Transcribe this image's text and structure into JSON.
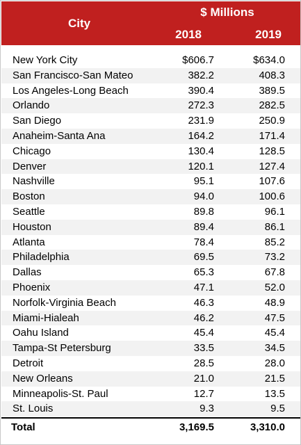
{
  "header": {
    "city_label": "City",
    "unit_label": "$ Millions",
    "year1": "2018",
    "year2": "2019"
  },
  "rows": [
    {
      "city": "New York City",
      "v2018": "$606.7",
      "v2019": "$634.0"
    },
    {
      "city": "San Francisco-San Mateo",
      "v2018": "382.2",
      "v2019": "408.3"
    },
    {
      "city": "Los Angeles-Long Beach",
      "v2018": "390.4",
      "v2019": "389.5"
    },
    {
      "city": "Orlando",
      "v2018": "272.3",
      "v2019": "282.5"
    },
    {
      "city": "San Diego",
      "v2018": "231.9",
      "v2019": "250.9"
    },
    {
      "city": "Anaheim-Santa Ana",
      "v2018": "164.2",
      "v2019": "171.4"
    },
    {
      "city": "Chicago",
      "v2018": "130.4",
      "v2019": "128.5"
    },
    {
      "city": "Denver",
      "v2018": "120.1",
      "v2019": "127.4"
    },
    {
      "city": "Nashville",
      "v2018": "95.1",
      "v2019": "107.6"
    },
    {
      "city": "Boston",
      "v2018": "94.0",
      "v2019": "100.6"
    },
    {
      "city": "Seattle",
      "v2018": "89.8",
      "v2019": "96.1"
    },
    {
      "city": "Houston",
      "v2018": "89.4",
      "v2019": "86.1"
    },
    {
      "city": "Atlanta",
      "v2018": "78.4",
      "v2019": "85.2"
    },
    {
      "city": "Philadelphia",
      "v2018": "69.5",
      "v2019": "73.2"
    },
    {
      "city": "Dallas",
      "v2018": "65.3",
      "v2019": "67.8"
    },
    {
      "city": "Phoenix",
      "v2018": "47.1",
      "v2019": "52.0"
    },
    {
      "city": "Norfolk-Virginia Beach",
      "v2018": "46.3",
      "v2019": "48.9"
    },
    {
      "city": "Miami-Hialeah",
      "v2018": "46.2",
      "v2019": "47.5"
    },
    {
      "city": "Oahu Island",
      "v2018": "45.4",
      "v2019": "45.4"
    },
    {
      "city": "Tampa-St Petersburg",
      "v2018": "33.5",
      "v2019": "34.5"
    },
    {
      "city": "Detroit",
      "v2018": "28.5",
      "v2019": "28.0"
    },
    {
      "city": "New Orleans",
      "v2018": "21.0",
      "v2019": "21.5"
    },
    {
      "city": "Minneapolis-St. Paul",
      "v2018": "12.7",
      "v2019": "13.5"
    },
    {
      "city": "St. Louis",
      "v2018": "9.3",
      "v2019": "9.5"
    }
  ],
  "total": {
    "label": "Total",
    "v2018": "3,169.5",
    "v2019": "3,310.0"
  },
  "colors": {
    "header_bg": "#c0201f",
    "header_text": "#ffffff",
    "stripe": "#f2f2f2"
  }
}
